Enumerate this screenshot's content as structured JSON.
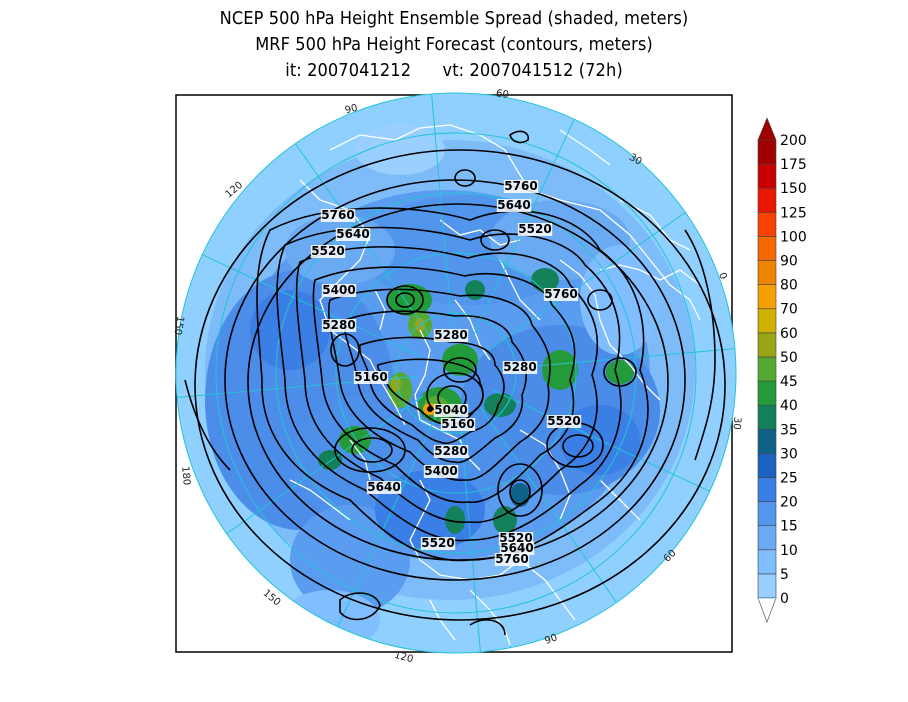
{
  "title": {
    "line1": "NCEP 500 hPa Height Ensemble Spread (shaded, meters)",
    "line2": "MRF 500 hPa Height Forecast (contours, meters)",
    "line3": "it: 2007041212      vt: 2007041512 (72h)"
  },
  "map": {
    "projection": "north polar stereographic",
    "ocean_color": "#8fd0ff",
    "land_outline_color": "#ffffff",
    "gridline_color": "#22c4d8",
    "contour_color": "#000000",
    "longitude_labels": [
      "60",
      "30",
      "0",
      "30",
      "60",
      "90",
      "120",
      "150",
      "180",
      "150",
      "120",
      "90"
    ],
    "contour_labels": [
      "5760",
      "5640",
      "5520",
      "5760",
      "5640",
      "5520",
      "5760",
      "5400",
      "5280",
      "5280",
      "5160",
      "5280",
      "5040",
      "5160",
      "5520",
      "5280",
      "5400",
      "5640",
      "5520",
      "5520",
      "5640",
      "5760"
    ],
    "spread_hotspot_value": 80
  },
  "colorbar": {
    "levels": [
      "0",
      "5",
      "10",
      "15",
      "20",
      "25",
      "30",
      "35",
      "40",
      "45",
      "50",
      "60",
      "70",
      "80",
      "90",
      "100",
      "125",
      "150",
      "175",
      "200"
    ],
    "colors": [
      "#b5e3ff",
      "#9ad0ff",
      "#81beff",
      "#6aaaf2",
      "#5496ee",
      "#3a7fe6",
      "#1b62c2",
      "#11628a",
      "#13805a",
      "#239b3a",
      "#55a832",
      "#9aa417",
      "#d0b000",
      "#f2a100",
      "#ef8400",
      "#f46800",
      "#f84200",
      "#e81800",
      "#c80000",
      "#a00000"
    ]
  }
}
